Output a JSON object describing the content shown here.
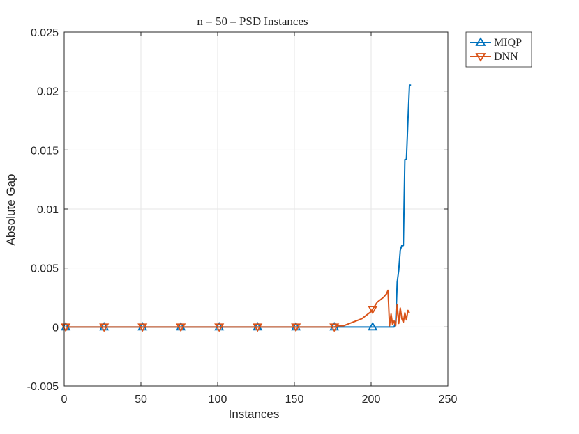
{
  "chart_data": {
    "type": "line",
    "title": "n = 50 – PSD Instances",
    "xlabel": "Instances",
    "ylabel": "Absolute Gap",
    "xlim": [
      0,
      250
    ],
    "ylim": [
      -0.005,
      0.025
    ],
    "xticks": [
      0,
      50,
      100,
      150,
      200,
      250
    ],
    "xtick_labels": [
      "0",
      "50",
      "100",
      "150",
      "200",
      "250"
    ],
    "yticks": [
      -0.005,
      0,
      0.005,
      0.01,
      0.015,
      0.02,
      0.025
    ],
    "ytick_labels": [
      "-0.005",
      "0",
      "0.005",
      "0.01",
      "0.015",
      "0.02",
      "0.025"
    ],
    "grid": true,
    "legend_position": "outside-top-right",
    "series": [
      {
        "name": "MIQP",
        "color": "#0072BD",
        "marker": "triangle-up",
        "marker_x": [
          1,
          26,
          51,
          76,
          101,
          126,
          151,
          176,
          201
        ],
        "x": [
          1,
          176,
          201,
          215,
          216,
          216.5,
          217,
          218,
          219,
          220,
          221,
          222,
          222.5,
          223,
          224,
          225,
          226
        ],
        "y": [
          0,
          0,
          0,
          0,
          0.0005,
          0.002,
          0.0038,
          0.0048,
          0.0065,
          0.0069,
          0.0069,
          0.0142,
          0.0142,
          0.0142,
          0.0175,
          0.0205,
          0.0205
        ]
      },
      {
        "name": "DNN",
        "color": "#D95319",
        "marker": "triangle-down",
        "marker_x": [
          1,
          26,
          51,
          76,
          101,
          126,
          151,
          176,
          201
        ],
        "x": [
          1,
          176,
          178,
          180,
          182,
          184,
          186,
          188,
          190,
          192,
          194,
          196,
          198,
          200,
          201,
          202,
          204,
          206,
          208,
          210,
          211,
          212,
          213,
          214,
          215,
          216,
          217,
          218,
          219,
          220,
          221,
          222,
          223,
          224,
          225
        ],
        "y": [
          0,
          0,
          0.0001,
          0.0001,
          0.0001,
          0.0002,
          0.0003,
          0.0004,
          0.0005,
          0.0006,
          0.0007,
          0.0009,
          0.0011,
          0.0013,
          0.0015,
          0.0017,
          0.0021,
          0.0023,
          0.0025,
          0.0028,
          0.0031,
          0.0001,
          0.0011,
          0.0002,
          0.0005,
          0.0001,
          0.0019,
          0.0003,
          0.0016,
          0.0007,
          0.0004,
          0.0012,
          0.0006,
          0.0014,
          0.0012
        ]
      }
    ]
  }
}
